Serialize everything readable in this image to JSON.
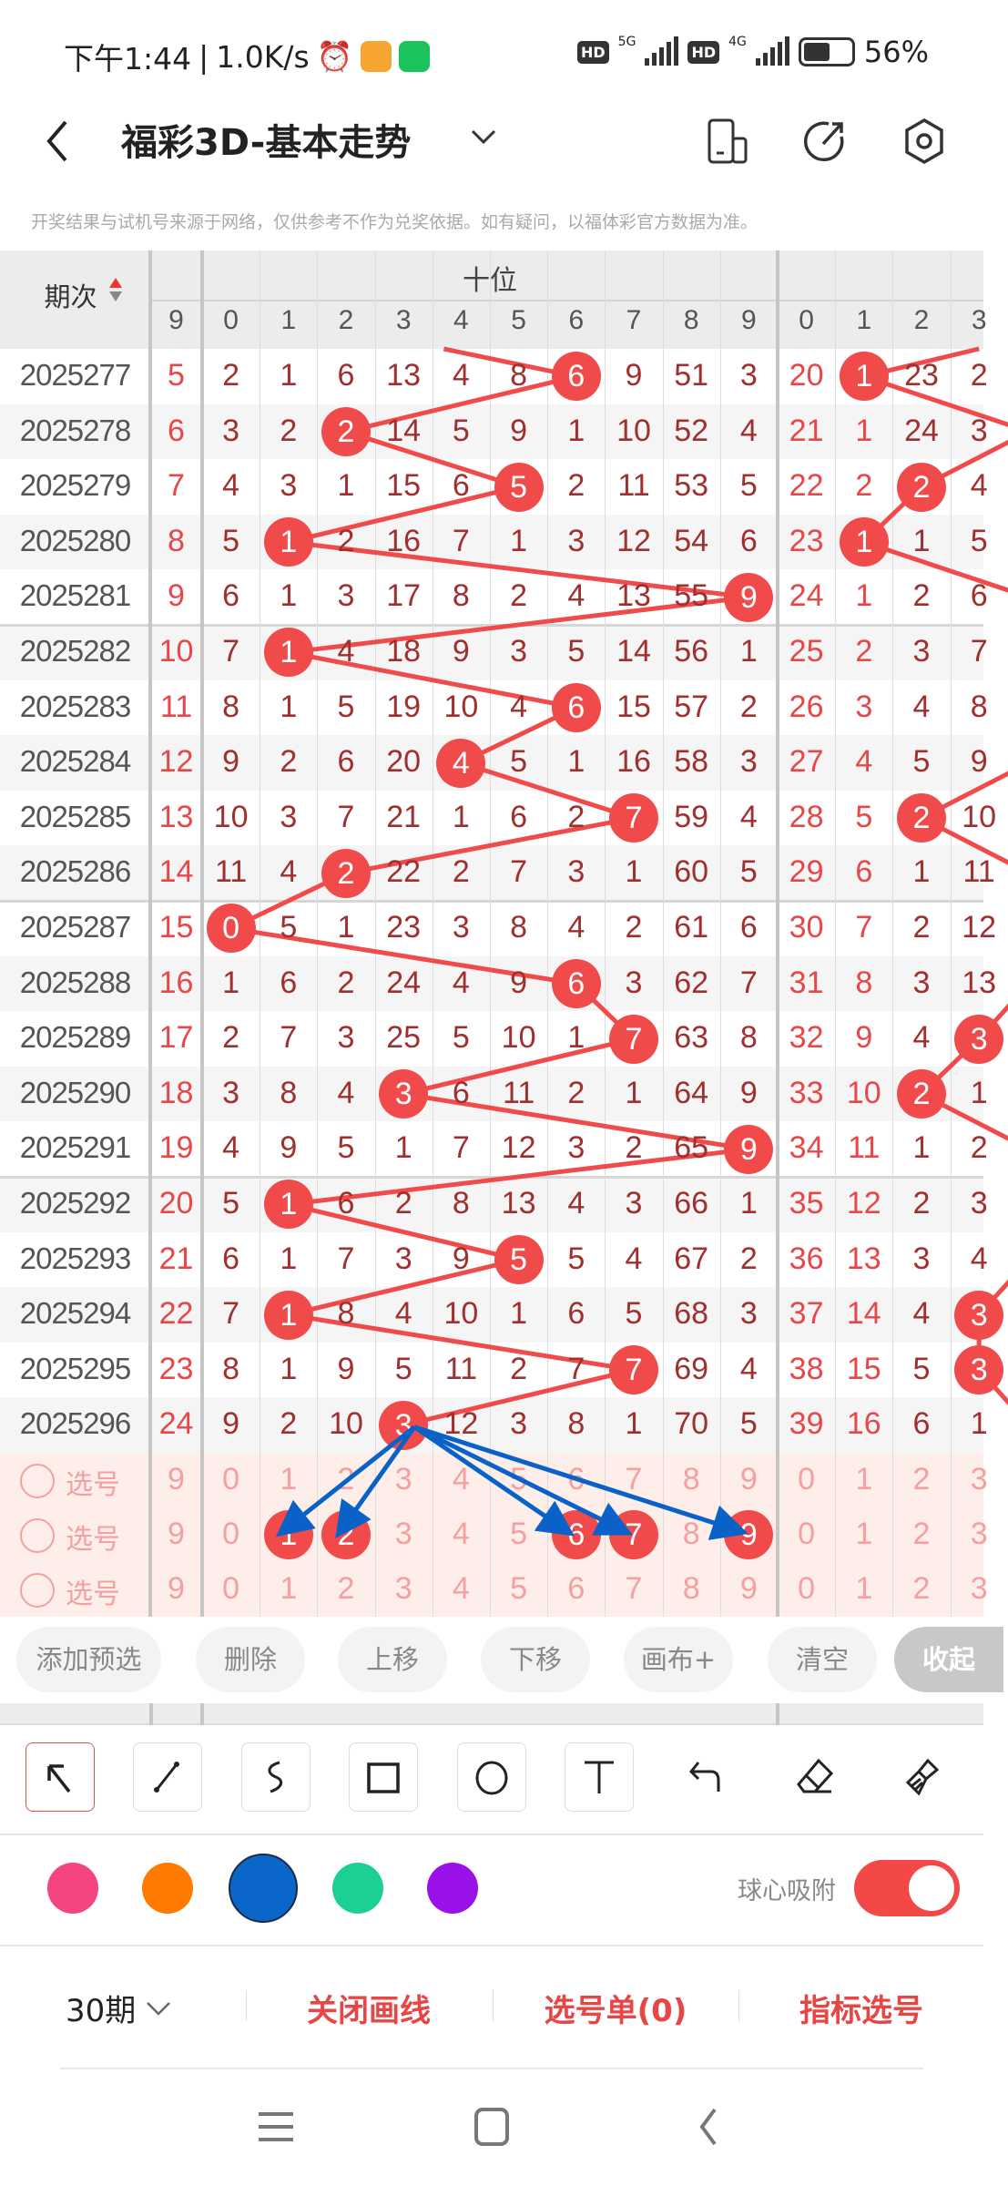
{
  "status_bar": {
    "time": "下午1:44",
    "speed": "1.0K/s",
    "battery": "56%",
    "net1": "5G",
    "net2": "4G",
    "hd": "HD"
  },
  "header": {
    "title": "福彩3D-基本走势",
    "icons": [
      "back-icon",
      "chevron-down-icon",
      "device-icon",
      "share-icon",
      "settings-icon"
    ]
  },
  "disclaimer": "开奖结果与试机号来源于网络，仅供参考不作为兑奖依据。如有疑问，以福体彩官方数据为准。",
  "table": {
    "period_header": "期次",
    "group_label": "十位",
    "prev_col_label": "9",
    "digit_labels": [
      "0",
      "1",
      "2",
      "3",
      "4",
      "5",
      "6",
      "7",
      "8",
      "9"
    ],
    "units_labels": [
      "0",
      "1",
      "2",
      "3"
    ],
    "rows": [
      {
        "period": "2025277",
        "prev": "5",
        "tens": [
          "2",
          "1",
          "6",
          "13",
          "4",
          "8",
          "6",
          "9",
          "51",
          "3"
        ],
        "tens_hit": 6,
        "units": [
          "20",
          "1",
          "23",
          "2"
        ],
        "units_hit": 1
      },
      {
        "period": "2025278",
        "prev": "6",
        "tens": [
          "3",
          "2",
          "2",
          "14",
          "5",
          "9",
          "1",
          "10",
          "52",
          "4"
        ],
        "tens_hit": 2,
        "units": [
          "21",
          "1",
          "24",
          "3"
        ],
        "units_hit": null
      },
      {
        "period": "2025279",
        "prev": "7",
        "tens": [
          "4",
          "3",
          "1",
          "15",
          "6",
          "5",
          "2",
          "11",
          "53",
          "5"
        ],
        "tens_hit": 5,
        "units": [
          "22",
          "2",
          "2",
          "4"
        ],
        "units_hit": 2
      },
      {
        "period": "2025280",
        "prev": "8",
        "tens": [
          "5",
          "1",
          "2",
          "16",
          "7",
          "1",
          "3",
          "12",
          "54",
          "6"
        ],
        "tens_hit": 1,
        "units": [
          "23",
          "1",
          "1",
          "5"
        ],
        "units_hit": 1
      },
      {
        "period": "2025281",
        "prev": "9",
        "tens": [
          "6",
          "1",
          "3",
          "17",
          "8",
          "2",
          "4",
          "13",
          "55",
          "9"
        ],
        "tens_hit": 9,
        "units": [
          "24",
          "1",
          "2",
          "6"
        ],
        "units_hit": null
      },
      {
        "period": "2025282",
        "prev": "10",
        "tens": [
          "7",
          "1",
          "4",
          "18",
          "9",
          "3",
          "5",
          "14",
          "56",
          "1"
        ],
        "tens_hit": 1,
        "units": [
          "25",
          "2",
          "3",
          "7"
        ],
        "units_hit": null
      },
      {
        "period": "2025283",
        "prev": "11",
        "tens": [
          "8",
          "1",
          "5",
          "19",
          "10",
          "4",
          "6",
          "15",
          "57",
          "2"
        ],
        "tens_hit": 6,
        "units": [
          "26",
          "3",
          "4",
          "8"
        ],
        "units_hit": null
      },
      {
        "period": "2025284",
        "prev": "12",
        "tens": [
          "9",
          "2",
          "6",
          "20",
          "4",
          "5",
          "1",
          "16",
          "58",
          "3"
        ],
        "tens_hit": 4,
        "units": [
          "27",
          "4",
          "5",
          "9"
        ],
        "units_hit": null
      },
      {
        "period": "2025285",
        "prev": "13",
        "tens": [
          "10",
          "3",
          "7",
          "21",
          "1",
          "6",
          "2",
          "7",
          "59",
          "4"
        ],
        "tens_hit": 7,
        "units": [
          "28",
          "5",
          "2",
          "10"
        ],
        "units_hit": 2
      },
      {
        "period": "2025286",
        "prev": "14",
        "tens": [
          "11",
          "4",
          "2",
          "22",
          "2",
          "7",
          "3",
          "1",
          "60",
          "5"
        ],
        "tens_hit": 2,
        "units": [
          "29",
          "6",
          "1",
          "11"
        ],
        "units_hit": null
      },
      {
        "period": "2025287",
        "prev": "15",
        "tens": [
          "0",
          "5",
          "1",
          "23",
          "3",
          "8",
          "4",
          "2",
          "61",
          "6"
        ],
        "tens_hit": 0,
        "units": [
          "30",
          "7",
          "2",
          "12"
        ],
        "units_hit": null
      },
      {
        "period": "2025288",
        "prev": "16",
        "tens": [
          "1",
          "6",
          "2",
          "24",
          "4",
          "9",
          "6",
          "3",
          "62",
          "7"
        ],
        "tens_hit": 6,
        "units": [
          "31",
          "8",
          "3",
          "13"
        ],
        "units_hit": null
      },
      {
        "period": "2025289",
        "prev": "17",
        "tens": [
          "2",
          "7",
          "3",
          "25",
          "5",
          "10",
          "1",
          "7",
          "63",
          "8"
        ],
        "tens_hit": 7,
        "units": [
          "32",
          "9",
          "4",
          "3"
        ],
        "units_hit": 3
      },
      {
        "period": "2025290",
        "prev": "18",
        "tens": [
          "3",
          "8",
          "4",
          "3",
          "6",
          "11",
          "2",
          "1",
          "64",
          "9"
        ],
        "tens_hit": 3,
        "units": [
          "33",
          "10",
          "2",
          "1"
        ],
        "units_hit": 2
      },
      {
        "period": "2025291",
        "prev": "19",
        "tens": [
          "4",
          "9",
          "5",
          "1",
          "7",
          "12",
          "3",
          "2",
          "65",
          "9"
        ],
        "tens_hit": 9,
        "units": [
          "34",
          "11",
          "1",
          "2"
        ],
        "units_hit": null
      },
      {
        "period": "2025292",
        "prev": "20",
        "tens": [
          "5",
          "1",
          "6",
          "2",
          "8",
          "13",
          "4",
          "3",
          "66",
          "1"
        ],
        "tens_hit": 1,
        "units": [
          "35",
          "12",
          "2",
          "3"
        ],
        "units_hit": null
      },
      {
        "period": "2025293",
        "prev": "21",
        "tens": [
          "6",
          "1",
          "7",
          "3",
          "9",
          "5",
          "5",
          "4",
          "67",
          "2"
        ],
        "tens_hit": 5,
        "units": [
          "36",
          "13",
          "3",
          "4"
        ],
        "units_hit": null
      },
      {
        "period": "2025294",
        "prev": "22",
        "tens": [
          "7",
          "1",
          "8",
          "4",
          "10",
          "1",
          "6",
          "5",
          "68",
          "3"
        ],
        "tens_hit": 1,
        "units": [
          "37",
          "14",
          "4",
          "3"
        ],
        "units_hit": 3
      },
      {
        "period": "2025295",
        "prev": "23",
        "tens": [
          "8",
          "1",
          "9",
          "5",
          "11",
          "2",
          "7",
          "7",
          "69",
          "4"
        ],
        "tens_hit": 7,
        "units": [
          "38",
          "15",
          "5",
          "3"
        ],
        "units_hit": 3
      },
      {
        "period": "2025296",
        "prev": "24",
        "tens": [
          "9",
          "2",
          "10",
          "3",
          "12",
          "3",
          "8",
          "1",
          "70",
          "5"
        ],
        "tens_hit": 3,
        "units": [
          "39",
          "16",
          "6",
          "1"
        ],
        "units_hit": null
      }
    ],
    "select_rows": [
      {
        "label": "选号",
        "prev": "9",
        "selected": []
      },
      {
        "label": "选号",
        "prev": "9",
        "selected": [
          1,
          2,
          6,
          7,
          9
        ]
      },
      {
        "label": "选号",
        "prev": "9",
        "selected": []
      }
    ],
    "line_color": "#f04a4a",
    "arrow_color": "#0a62c8"
  },
  "actions": [
    "添加预选",
    "删除",
    "上移",
    "下移",
    "画布+",
    "清空",
    "收起"
  ],
  "tools": [
    "arrow-tool-icon",
    "line-tool-icon",
    "curve-tool-icon",
    "rectangle-tool-icon",
    "circle-tool-icon",
    "text-tool-icon",
    "undo-icon",
    "eraser-icon",
    "clear-brush-icon"
  ],
  "selected_tool": "arrow-tool-icon",
  "colors": [
    "#f5457e",
    "#ff7a00",
    "#0a66c8",
    "#1ccf94",
    "#9a10e8"
  ],
  "selected_color": "#0a66c8",
  "snap": {
    "label": "球心吸附",
    "on": true
  },
  "bottom_bar": {
    "periods": "30期",
    "close_lines": "关闭画线",
    "ticket": "选号单(0)",
    "indicator": "指标选号"
  },
  "nav": [
    "menu-icon",
    "home-icon",
    "back-icon"
  ]
}
